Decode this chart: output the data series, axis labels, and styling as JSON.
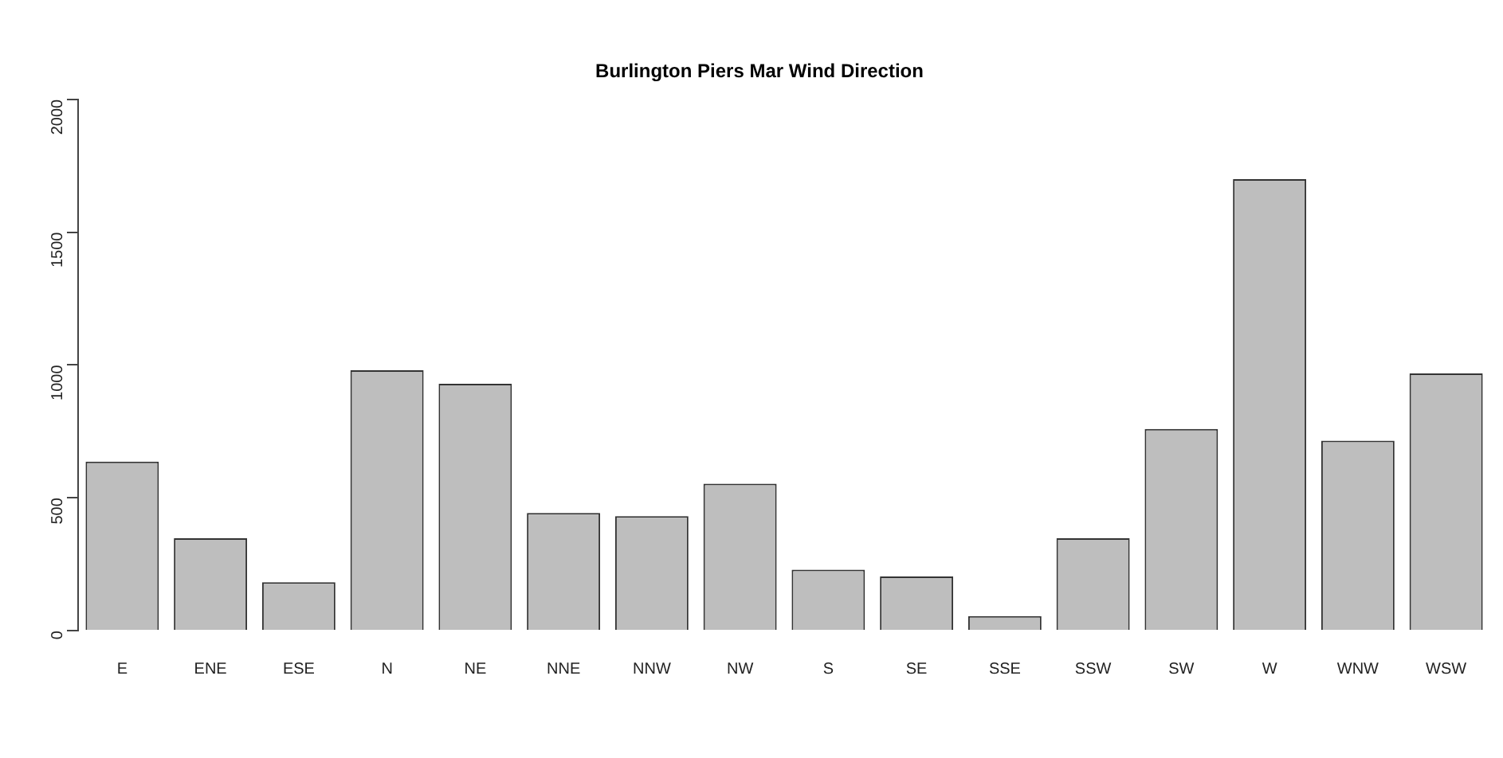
{
  "chart_data": {
    "type": "bar",
    "title": "Burlington Piers Mar Wind Direction",
    "categories": [
      "E",
      "ENE",
      "ESE",
      "N",
      "NE",
      "NNE",
      "NNW",
      "NW",
      "S",
      "SE",
      "SSE",
      "SSW",
      "SW",
      "W",
      "WNW",
      "WSW"
    ],
    "values": [
      636,
      348,
      182,
      980,
      929,
      443,
      431,
      553,
      229,
      204,
      55,
      348,
      759,
      1700,
      715,
      968
    ],
    "color": "#bebebe",
    "ylim": [
      0,
      2000
    ],
    "yticks": [
      0,
      500,
      1000,
      1500,
      2000
    ],
    "grid": false
  }
}
